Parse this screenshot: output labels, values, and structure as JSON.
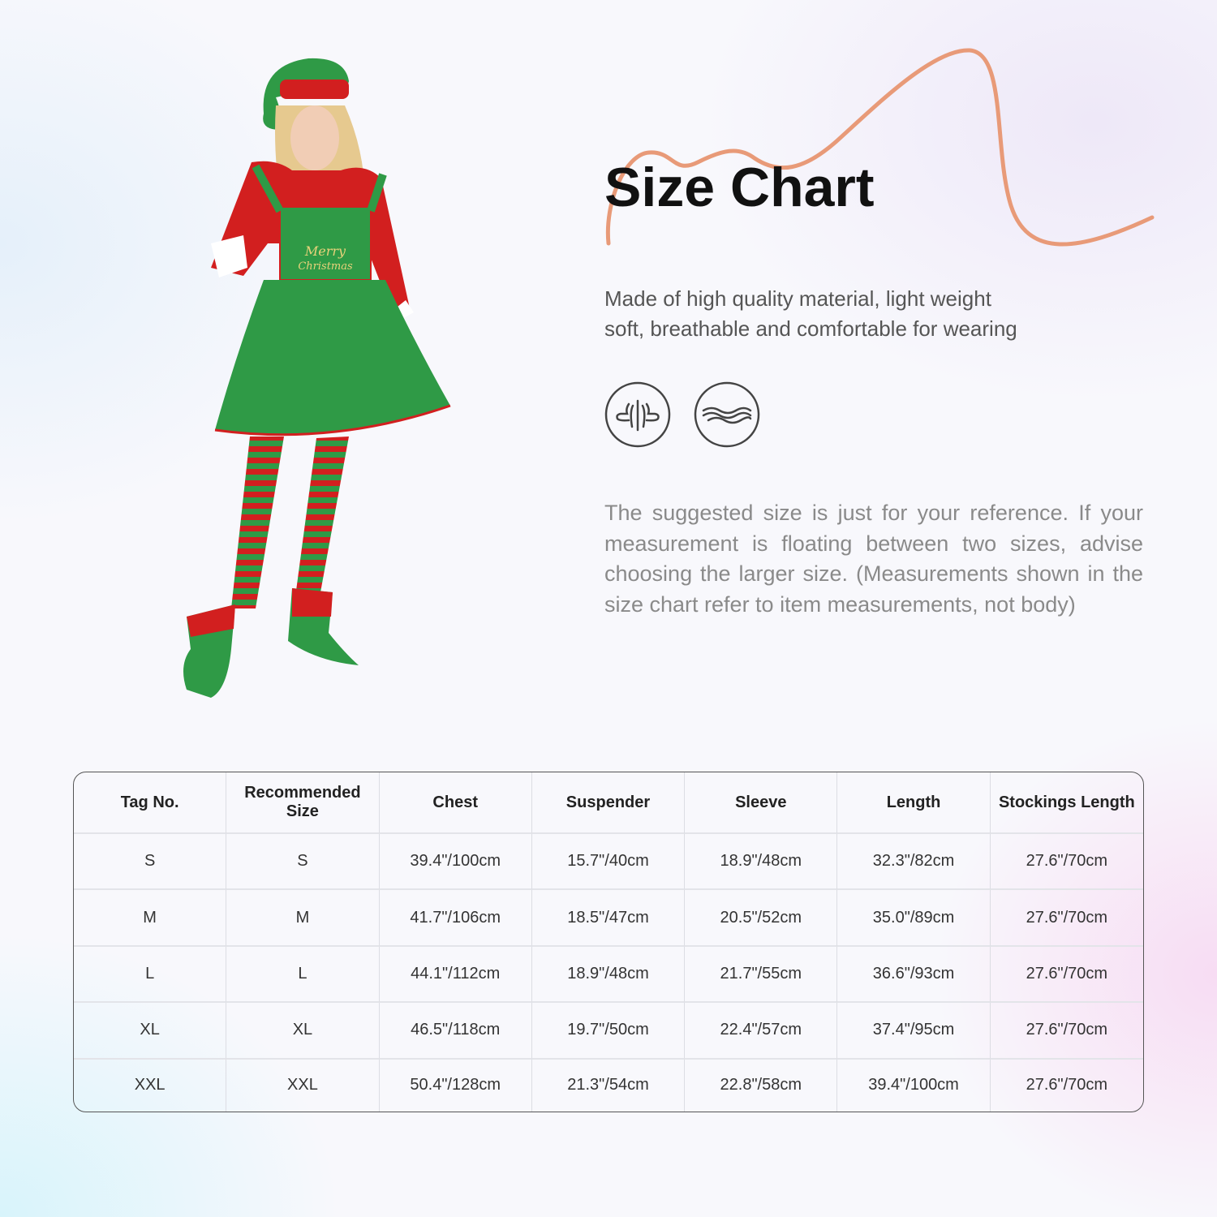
{
  "title": "Size Chart",
  "description": {
    "line1": "Made of high quality material, light weight",
    "line2": "soft, breathable and comfortable for wearing"
  },
  "feature_icons": [
    "lightweight-icon",
    "breathable-icon"
  ],
  "note": "The suggested size is just for your reference. If your measurement is floating between two sizes, advise choosing the larger size. (Measurements shown in the size chart refer to item measurements, not body)",
  "figure": {
    "apron_text": "Merry Christmas"
  },
  "colors": {
    "accent_curve": "#e89a78",
    "costume_green": "#2f9a46",
    "costume_red": "#d21f1f"
  },
  "table": {
    "headers": [
      "Tag No.",
      "Recommended Size",
      "Chest",
      "Suspender",
      "Sleeve",
      "Length",
      "Stockings Length"
    ],
    "rows": [
      [
        "S",
        "S",
        "39.4\"/100cm",
        "15.7\"/40cm",
        "18.9\"/48cm",
        "32.3\"/82cm",
        "27.6\"/70cm"
      ],
      [
        "M",
        "M",
        "41.7\"/106cm",
        "18.5\"/47cm",
        "20.5\"/52cm",
        "35.0\"/89cm",
        "27.6\"/70cm"
      ],
      [
        "L",
        "L",
        "44.1\"/112cm",
        "18.9\"/48cm",
        "21.7\"/55cm",
        "36.6\"/93cm",
        "27.6\"/70cm"
      ],
      [
        "XL",
        "XL",
        "46.5\"/118cm",
        "19.7\"/50cm",
        "22.4\"/57cm",
        "37.4\"/95cm",
        "27.6\"/70cm"
      ],
      [
        "XXL",
        "XXL",
        "50.4\"/128cm",
        "21.3\"/54cm",
        "22.8\"/58cm",
        "39.4\"/100cm",
        "27.6\"/70cm"
      ]
    ]
  }
}
